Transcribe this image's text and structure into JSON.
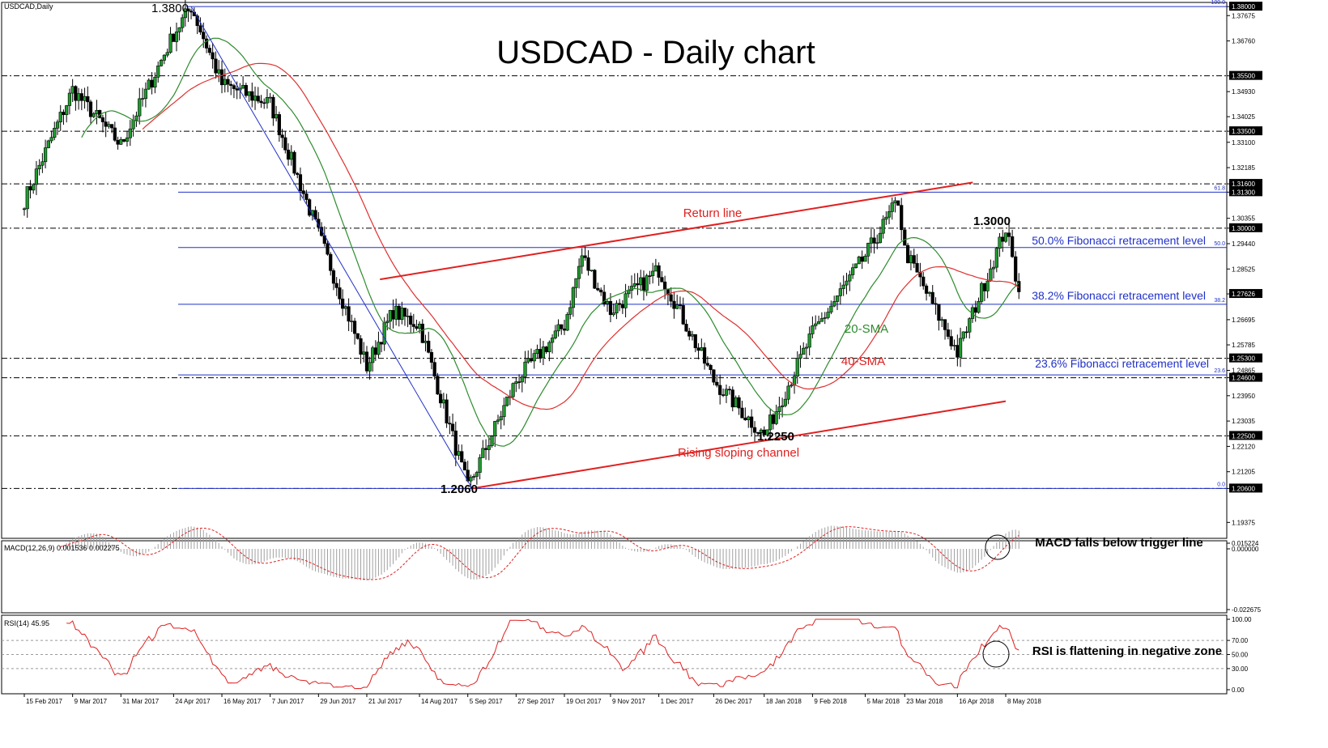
{
  "symbol_label": "USDCAD,Daily",
  "title": "USDCAD - Daily chart",
  "colors": {
    "candle_body": "#1f9b2e",
    "sma20": "#2e8b2e",
    "sma40": "#e03030",
    "fib": "#2030c8",
    "channel": "#e02020",
    "macd_signal": "#e02020",
    "rsi": "#e02020",
    "level_box": "#000000"
  },
  "chart_data": [
    {
      "panel": "price",
      "type": "candlestick",
      "title": "USDCAD - Daily chart",
      "y_ticks": [
        "1.38000",
        "1.37675",
        "1.36760",
        "1.35500",
        "1.34930",
        "1.34025",
        "1.33500",
        "1.33100",
        "1.32185",
        "1.31600",
        "1.31300",
        "1.30355",
        "1.30000",
        "1.29440",
        "1.28525",
        "1.27626",
        "1.26695",
        "1.25785",
        "1.25300",
        "1.24865",
        "1.24600",
        "1.23950",
        "1.23035",
        "1.22500",
        "1.22120",
        "1.21205",
        "1.20600",
        "1.19375"
      ],
      "boxed_levels": [
        "1.38000",
        "1.35500",
        "1.33500",
        "1.31600",
        "1.31300",
        "1.30000",
        "1.27626",
        "1.25300",
        "1.24600",
        "1.22500",
        "1.20600"
      ],
      "ylim": [
        1.188,
        1.3815
      ],
      "x_labels": [
        "15 Feb 2017",
        "9 Mar 2017",
        "31 Mar 2017",
        "24 Apr 2017",
        "16 May 2017",
        "7 Jun 2017",
        "29 Jun 2017",
        "21 Jul 2017",
        "14 Aug 2017",
        "5 Sep 2017",
        "27 Sep 2017",
        "19 Oct 2017",
        "9 Nov 2017",
        "1 Dec 2017",
        "26 Dec 2017",
        "18 Jan 2018",
        "9 Feb 2018",
        "5 Mar 2018",
        "23 Mar 2018",
        "16 Apr 2018",
        "8 May 2018"
      ],
      "anchors": [
        {
          "date": "15 Feb 2017",
          "close": 1.31
        },
        {
          "date": "9 Mar 2017",
          "close": 1.35
        },
        {
          "date": "31 Mar 2017",
          "close": 1.33
        },
        {
          "date": "24 Apr 2017",
          "close": 1.37
        },
        {
          "date": "2 May 2017",
          "close": 1.38
        },
        {
          "date": "16 May 2017",
          "close": 1.352
        },
        {
          "date": "7 Jun 2017",
          "close": 1.345
        },
        {
          "date": "29 Jun 2017",
          "close": 1.298
        },
        {
          "date": "21 Jul 2017",
          "close": 1.25
        },
        {
          "date": "2 Aug 2017",
          "close": 1.27
        },
        {
          "date": "14 Aug 2017",
          "close": 1.265
        },
        {
          "date": "5 Sep 2017",
          "close": 1.206
        },
        {
          "date": "27 Sep 2017",
          "close": 1.245
        },
        {
          "date": "19 Oct 2017",
          "close": 1.265
        },
        {
          "date": "27 Oct 2017",
          "close": 1.29
        },
        {
          "date": "9 Nov 2017",
          "close": 1.27
        },
        {
          "date": "1 Dec 2017",
          "close": 1.285
        },
        {
          "date": "26 Dec 2017",
          "close": 1.245
        },
        {
          "date": "18 Jan 2018",
          "close": 1.225
        },
        {
          "date": "9 Feb 2018",
          "close": 1.262
        },
        {
          "date": "5 Mar 2018",
          "close": 1.29
        },
        {
          "date": "20 Mar 2018",
          "close": 1.31
        },
        {
          "date": "23 Mar 2018",
          "close": 1.292
        },
        {
          "date": "16 Apr 2018",
          "close": 1.255
        },
        {
          "date": "8 May 2018",
          "close": 1.3
        },
        {
          "date": "14 May 2018",
          "close": 1.277
        }
      ],
      "fibonacci": {
        "levels": [
          {
            "ratio": "100.0",
            "price": 1.38
          },
          {
            "ratio": "61.8",
            "price": 1.313,
            "label": ""
          },
          {
            "ratio": "50.0",
            "price": 1.293,
            "label": "50.0% Fibonacci retracement level"
          },
          {
            "ratio": "38.2",
            "price": 1.2725,
            "label": "38.2% Fibonacci retracement level"
          },
          {
            "ratio": "23.6",
            "price": 1.247,
            "label": "23.6% Fibonacci retracement level"
          },
          {
            "ratio": "0.0",
            "price": 1.206
          }
        ]
      },
      "horizontal_levels": [
        1.355,
        1.335,
        1.316,
        1.3,
        1.253,
        1.246,
        1.225,
        1.206
      ],
      "annotations": [
        {
          "text": "1.3800",
          "date": "2 May 2017",
          "price": 1.38
        },
        {
          "text": "1.2060",
          "date": "7 Sep 2017",
          "price": 1.206
        },
        {
          "text": "1.2250",
          "date": "18 Jan 2018",
          "price": 1.225
        },
        {
          "text": "1.3000",
          "date": "8 May 2018",
          "price": 1.3
        },
        {
          "text": "Return line"
        },
        {
          "text": "Rising sloping channel"
        },
        {
          "text": "20-SMA"
        },
        {
          "text": "40-SMA"
        }
      ],
      "channel": {
        "return_line": [
          {
            "date": "27 Jul 2017",
            "price": 1.2815
          },
          {
            "date": "23 Apr 2018",
            "price": 1.3165
          }
        ],
        "support_line": [
          {
            "date": "7 Sep 2017",
            "price": 1.206
          },
          {
            "date": "8 May 2018",
            "price": 1.2375
          }
        ]
      },
      "series": [
        {
          "name": "20-SMA",
          "values_from": "close",
          "period": 20
        },
        {
          "name": "40-SMA",
          "values_from": "close",
          "period": 40
        }
      ]
    },
    {
      "panel": "macd",
      "type": "bar",
      "label": "MACD(12,26,9) 0.001536 0.002275",
      "y_ticks": [
        "0.015224",
        "0.000000",
        "-0.022675"
      ],
      "annotation": "MACD falls below trigger line"
    },
    {
      "panel": "rsi",
      "type": "line",
      "label": "RSI(14) 45.95",
      "y_ticks": [
        "100.00",
        "70.00",
        "50.00",
        "30.00",
        "0.00"
      ],
      "annotation": "RSI is flattening in negative zone"
    }
  ]
}
